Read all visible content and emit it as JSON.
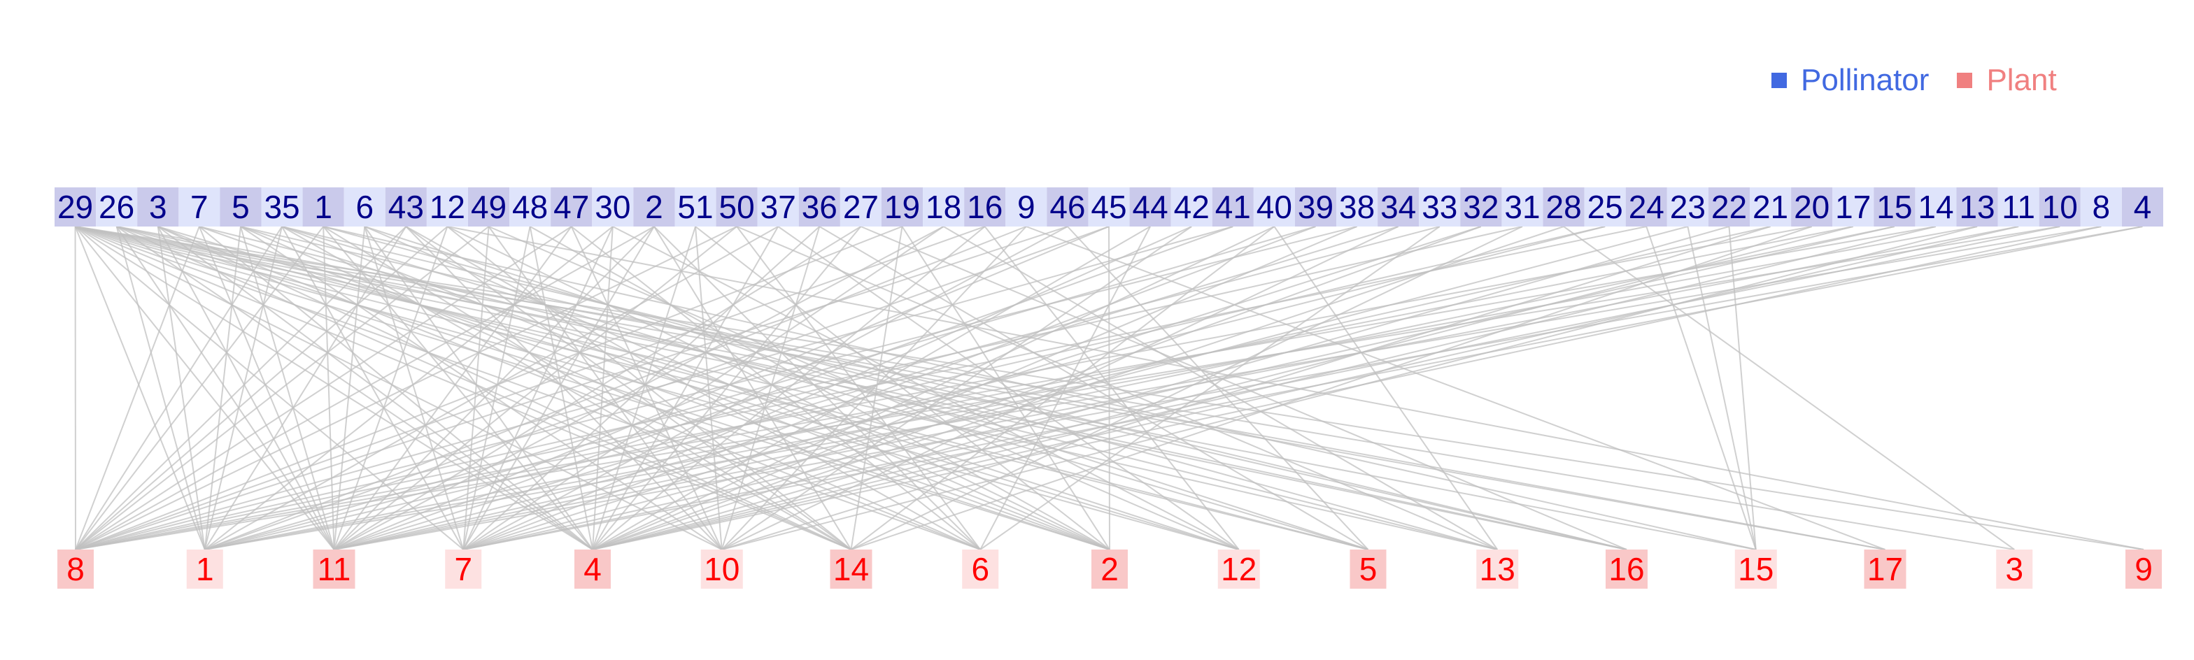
{
  "colors": {
    "pollinator_text": "#00008b",
    "pollinator_box_a": "#cacaeb",
    "pollinator_box_b": "#dfe4fb",
    "plant_text": "#ff0000",
    "plant_box_a": "#f9c8c8",
    "plant_box_b": "#fde1e1",
    "edge": "#c0c0c0",
    "legend_pollinator": "#4169e1",
    "legend_plant": "#f08080"
  },
  "legend": {
    "pollinator_label": "Pollinator",
    "plant_label": "Plant"
  },
  "pollinators": [
    "29",
    "26",
    "3",
    "7",
    "5",
    "35",
    "1",
    "6",
    "43",
    "12",
    "49",
    "48",
    "47",
    "30",
    "2",
    "51",
    "50",
    "37",
    "36",
    "27",
    "19",
    "18",
    "16",
    "9",
    "46",
    "45",
    "44",
    "42",
    "41",
    "40",
    "39",
    "38",
    "34",
    "33",
    "32",
    "31",
    "28",
    "25",
    "24",
    "23",
    "22",
    "21",
    "20",
    "17",
    "15",
    "14",
    "13",
    "11",
    "10",
    "8",
    "4"
  ],
  "plants": [
    "8",
    "1",
    "11",
    "7",
    "4",
    "10",
    "14",
    "6",
    "2",
    "12",
    "5",
    "13",
    "16",
    "15",
    "17",
    "3",
    "9"
  ],
  "edges": [
    [
      "29",
      "8"
    ],
    [
      "29",
      "1"
    ],
    [
      "29",
      "11"
    ],
    [
      "29",
      "7"
    ],
    [
      "29",
      "4"
    ],
    [
      "29",
      "10"
    ],
    [
      "29",
      "14"
    ],
    [
      "29",
      "6"
    ],
    [
      "29",
      "2"
    ],
    [
      "29",
      "12"
    ],
    [
      "29",
      "5"
    ],
    [
      "29",
      "13"
    ],
    [
      "29",
      "16"
    ],
    [
      "29",
      "15"
    ],
    [
      "29",
      "17"
    ],
    [
      "29",
      "3"
    ],
    [
      "29",
      "9"
    ],
    [
      "26",
      "1"
    ],
    [
      "26",
      "11"
    ],
    [
      "26",
      "4"
    ],
    [
      "26",
      "14"
    ],
    [
      "26",
      "2"
    ],
    [
      "26",
      "5"
    ],
    [
      "26",
      "16"
    ],
    [
      "26",
      "17"
    ],
    [
      "3",
      "1"
    ],
    [
      "3",
      "11"
    ],
    [
      "3",
      "4"
    ],
    [
      "3",
      "14"
    ],
    [
      "3",
      "6"
    ],
    [
      "3",
      "12"
    ],
    [
      "7",
      "8"
    ],
    [
      "7",
      "11"
    ],
    [
      "7",
      "4"
    ],
    [
      "7",
      "2"
    ],
    [
      "7",
      "13"
    ],
    [
      "5",
      "1"
    ],
    [
      "5",
      "11"
    ],
    [
      "5",
      "10"
    ],
    [
      "5",
      "6"
    ],
    [
      "5",
      "12"
    ],
    [
      "5",
      "16"
    ],
    [
      "35",
      "8"
    ],
    [
      "35",
      "1"
    ],
    [
      "35",
      "7"
    ],
    [
      "35",
      "14"
    ],
    [
      "35",
      "2"
    ],
    [
      "35",
      "5"
    ],
    [
      "35",
      "16"
    ],
    [
      "1",
      "8"
    ],
    [
      "1",
      "11"
    ],
    [
      "1",
      "4"
    ],
    [
      "1",
      "14"
    ],
    [
      "1",
      "13"
    ],
    [
      "1",
      "15"
    ],
    [
      "6",
      "11"
    ],
    [
      "6",
      "7"
    ],
    [
      "6",
      "4"
    ],
    [
      "6",
      "2"
    ],
    [
      "6",
      "5"
    ],
    [
      "43",
      "8"
    ],
    [
      "43",
      "1"
    ],
    [
      "43",
      "10"
    ],
    [
      "43",
      "14"
    ],
    [
      "43",
      "6"
    ],
    [
      "12",
      "8"
    ],
    [
      "12",
      "11"
    ],
    [
      "12",
      "14"
    ],
    [
      "12",
      "2"
    ],
    [
      "12",
      "9"
    ],
    [
      "49",
      "8"
    ],
    [
      "49",
      "7"
    ],
    [
      "49",
      "10"
    ],
    [
      "49",
      "12"
    ],
    [
      "48",
      "7"
    ],
    [
      "48",
      "4"
    ],
    [
      "48",
      "2"
    ],
    [
      "47",
      "8"
    ],
    [
      "47",
      "11"
    ],
    [
      "47",
      "10"
    ],
    [
      "47",
      "6"
    ],
    [
      "30",
      "1"
    ],
    [
      "30",
      "7"
    ],
    [
      "30",
      "4"
    ],
    [
      "30",
      "12"
    ],
    [
      "2",
      "8"
    ],
    [
      "2",
      "11"
    ],
    [
      "2",
      "7"
    ],
    [
      "2",
      "14"
    ],
    [
      "2",
      "6"
    ],
    [
      "51",
      "4"
    ],
    [
      "51",
      "10"
    ],
    [
      "51",
      "2"
    ],
    [
      "50",
      "8"
    ],
    [
      "50",
      "11"
    ],
    [
      "50",
      "6"
    ],
    [
      "50",
      "13"
    ],
    [
      "37",
      "1"
    ],
    [
      "37",
      "4"
    ],
    [
      "37",
      "12"
    ],
    [
      "36",
      "7"
    ],
    [
      "36",
      "10"
    ],
    [
      "36",
      "5"
    ],
    [
      "27",
      "11"
    ],
    [
      "27",
      "4"
    ],
    [
      "27",
      "16"
    ],
    [
      "19",
      "8"
    ],
    [
      "19",
      "14"
    ],
    [
      "19",
      "2"
    ],
    [
      "18",
      "11"
    ],
    [
      "18",
      "7"
    ],
    [
      "18",
      "13"
    ],
    [
      "16",
      "8"
    ],
    [
      "16",
      "4"
    ],
    [
      "16",
      "12"
    ],
    [
      "9",
      "1"
    ],
    [
      "9",
      "10"
    ],
    [
      "9",
      "17"
    ],
    [
      "46",
      "8"
    ],
    [
      "46",
      "7"
    ],
    [
      "46",
      "5"
    ],
    [
      "45",
      "1"
    ],
    [
      "45",
      "11"
    ],
    [
      "45",
      "2"
    ],
    [
      "44",
      "4"
    ],
    [
      "44",
      "6"
    ],
    [
      "42",
      "7"
    ],
    [
      "42",
      "10"
    ],
    [
      "41",
      "8"
    ],
    [
      "41",
      "11"
    ],
    [
      "40",
      "4"
    ],
    [
      "40",
      "14"
    ],
    [
      "40",
      "13"
    ],
    [
      "39",
      "1"
    ],
    [
      "39",
      "7"
    ],
    [
      "38",
      "8"
    ],
    [
      "38",
      "4"
    ],
    [
      "34",
      "11"
    ],
    [
      "34",
      "10"
    ],
    [
      "33",
      "1"
    ],
    [
      "33",
      "6"
    ],
    [
      "32",
      "7"
    ],
    [
      "32",
      "4"
    ],
    [
      "31",
      "8"
    ],
    [
      "31",
      "14"
    ],
    [
      "28",
      "4"
    ],
    [
      "28",
      "3"
    ],
    [
      "25",
      "1"
    ],
    [
      "25",
      "11"
    ],
    [
      "24",
      "8"
    ],
    [
      "24",
      "15"
    ],
    [
      "23",
      "7"
    ],
    [
      "23",
      "15"
    ],
    [
      "22",
      "4"
    ],
    [
      "22",
      "15"
    ],
    [
      "21",
      "11"
    ],
    [
      "21",
      "10"
    ],
    [
      "20",
      "8"
    ],
    [
      "20",
      "14"
    ],
    [
      "17",
      "1"
    ],
    [
      "17",
      "4"
    ],
    [
      "15",
      "7"
    ],
    [
      "15",
      "11"
    ],
    [
      "14",
      "8"
    ],
    [
      "14",
      "4"
    ],
    [
      "13",
      "1"
    ],
    [
      "13",
      "10"
    ],
    [
      "11",
      "11"
    ],
    [
      "11",
      "4"
    ],
    [
      "10",
      "8"
    ],
    [
      "10",
      "7"
    ],
    [
      "8",
      "1"
    ],
    [
      "8",
      "4"
    ],
    [
      "4",
      "7"
    ],
    [
      "4",
      "11"
    ]
  ]
}
